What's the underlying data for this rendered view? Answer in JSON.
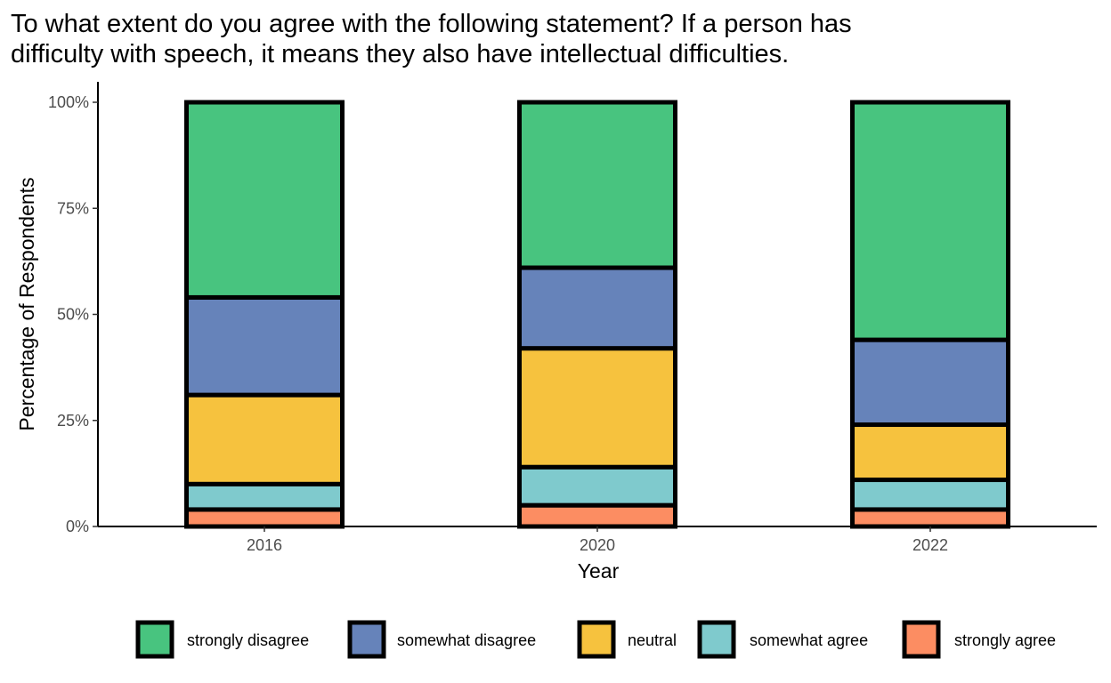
{
  "chart_data": {
    "type": "bar",
    "stacked": true,
    "title": "To what extent do you agree with the following statement? If a person has difficulty with speech, it means they also have intellectual difficulties.",
    "title_lines": [
      "To what extent do you agree with the following statement? If a person has",
      "difficulty with speech, it means they also have intellectual difficulties."
    ],
    "xlabel": "Year",
    "ylabel": "Percentage of Respondents",
    "categories": [
      "2016",
      "2020",
      "2022"
    ],
    "ylim": [
      0,
      100
    ],
    "y_ticks": [
      0,
      25,
      50,
      75,
      100
    ],
    "y_tick_labels": [
      "0%",
      "25%",
      "50%",
      "75%",
      "100%"
    ],
    "grid": false,
    "legend_position": "bottom",
    "series": [
      {
        "name": "strongly agree",
        "color": "#FC8D62",
        "values": [
          4,
          5,
          4
        ]
      },
      {
        "name": "somewhat agree",
        "color": "#7FCACD",
        "values": [
          6,
          9,
          7
        ]
      },
      {
        "name": "neutral",
        "color": "#F6C23E",
        "values": [
          21,
          28,
          13
        ]
      },
      {
        "name": "somewhat disagree",
        "color": "#6683BA",
        "values": [
          23,
          19,
          20
        ]
      },
      {
        "name": "strongly disagree",
        "color": "#48C47F",
        "values": [
          46,
          39,
          56
        ]
      }
    ],
    "legend_order": [
      "strongly disagree",
      "somewhat disagree",
      "neutral",
      "somewhat agree",
      "strongly agree"
    ]
  }
}
